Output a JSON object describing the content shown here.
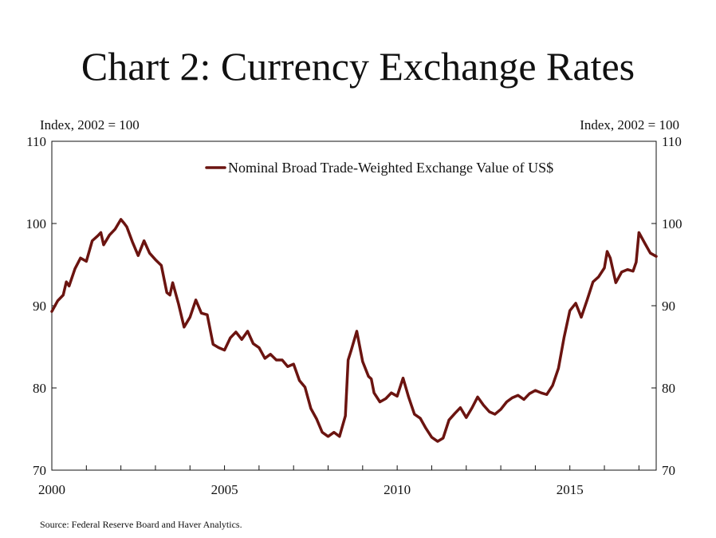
{
  "title": "Chart 2: Currency Exchange Rates",
  "source": "Source: Federal Reserve Board and Haver Analytics.",
  "chart_data": {
    "type": "line",
    "left_axis_unit": "Index, 2002 = 100",
    "right_axis_unit": "Index, 2002 = 100",
    "ylim": [
      70,
      110
    ],
    "yticks": [
      70,
      80,
      90,
      100,
      110
    ],
    "xlim": [
      2000,
      2017.5
    ],
    "xticks": [
      2000,
      2005,
      2010,
      2015
    ],
    "grid": false,
    "legend_position": "top-right",
    "line_color": "#6b1410",
    "series": [
      {
        "name": "Nominal Broad Trade-Weighted Exchange Value of US$",
        "x": [
          2000.0,
          2000.17,
          2000.33,
          2000.42,
          2000.5,
          2000.67,
          2000.83,
          2001.0,
          2001.17,
          2001.33,
          2001.42,
          2001.5,
          2001.67,
          2001.83,
          2002.0,
          2002.08,
          2002.17,
          2002.33,
          2002.5,
          2002.67,
          2002.83,
          2003.0,
          2003.17,
          2003.33,
          2003.42,
          2003.5,
          2003.67,
          2003.83,
          2004.0,
          2004.17,
          2004.33,
          2004.5,
          2004.67,
          2004.83,
          2005.0,
          2005.17,
          2005.33,
          2005.5,
          2005.67,
          2005.83,
          2006.0,
          2006.17,
          2006.33,
          2006.5,
          2006.67,
          2006.83,
          2007.0,
          2007.17,
          2007.33,
          2007.5,
          2007.67,
          2007.83,
          2008.0,
          2008.17,
          2008.33,
          2008.5,
          2008.58,
          2008.67,
          2008.83,
          2009.0,
          2009.17,
          2009.25,
          2009.33,
          2009.5,
          2009.67,
          2009.83,
          2010.0,
          2010.17,
          2010.33,
          2010.5,
          2010.67,
          2010.83,
          2011.0,
          2011.17,
          2011.33,
          2011.5,
          2011.67,
          2011.83,
          2012.0,
          2012.17,
          2012.33,
          2012.5,
          2012.67,
          2012.83,
          2013.0,
          2013.17,
          2013.33,
          2013.5,
          2013.67,
          2013.83,
          2014.0,
          2014.17,
          2014.33,
          2014.5,
          2014.67,
          2014.83,
          2015.0,
          2015.17,
          2015.33,
          2015.5,
          2015.67,
          2015.83,
          2016.0,
          2016.08,
          2016.17,
          2016.33,
          2016.5,
          2016.67,
          2016.83,
          2016.92,
          2017.0,
          2017.17,
          2017.33,
          2017.5
        ],
        "values": [
          89.3,
          90.6,
          91.3,
          92.9,
          92.4,
          94.5,
          95.8,
          95.4,
          97.9,
          98.5,
          98.9,
          97.4,
          98.6,
          99.3,
          100.5,
          100.1,
          99.6,
          97.8,
          96.1,
          97.9,
          96.4,
          95.6,
          94.9,
          91.6,
          91.3,
          92.8,
          90.2,
          87.4,
          88.6,
          90.7,
          89.1,
          88.9,
          85.3,
          84.9,
          84.6,
          86.1,
          86.8,
          85.9,
          86.9,
          85.4,
          84.9,
          83.6,
          84.1,
          83.4,
          83.4,
          82.6,
          82.9,
          80.9,
          80.1,
          77.5,
          76.2,
          74.6,
          74.1,
          74.6,
          74.1,
          76.6,
          83.4,
          84.6,
          86.9,
          83.2,
          81.4,
          81.1,
          79.4,
          78.3,
          78.7,
          79.4,
          79.0,
          81.2,
          78.9,
          76.8,
          76.3,
          75.1,
          74.0,
          73.5,
          73.9,
          76.1,
          76.9,
          77.6,
          76.4,
          77.6,
          78.9,
          77.9,
          77.1,
          76.8,
          77.4,
          78.3,
          78.8,
          79.1,
          78.6,
          79.3,
          79.7,
          79.4,
          79.2,
          80.3,
          82.4,
          86.1,
          89.4,
          90.3,
          88.6,
          90.7,
          92.9,
          93.5,
          94.6,
          96.6,
          95.8,
          92.8,
          94.1,
          94.4,
          94.2,
          95.3,
          98.9,
          97.6,
          96.4,
          96.0
        ]
      }
    ]
  }
}
